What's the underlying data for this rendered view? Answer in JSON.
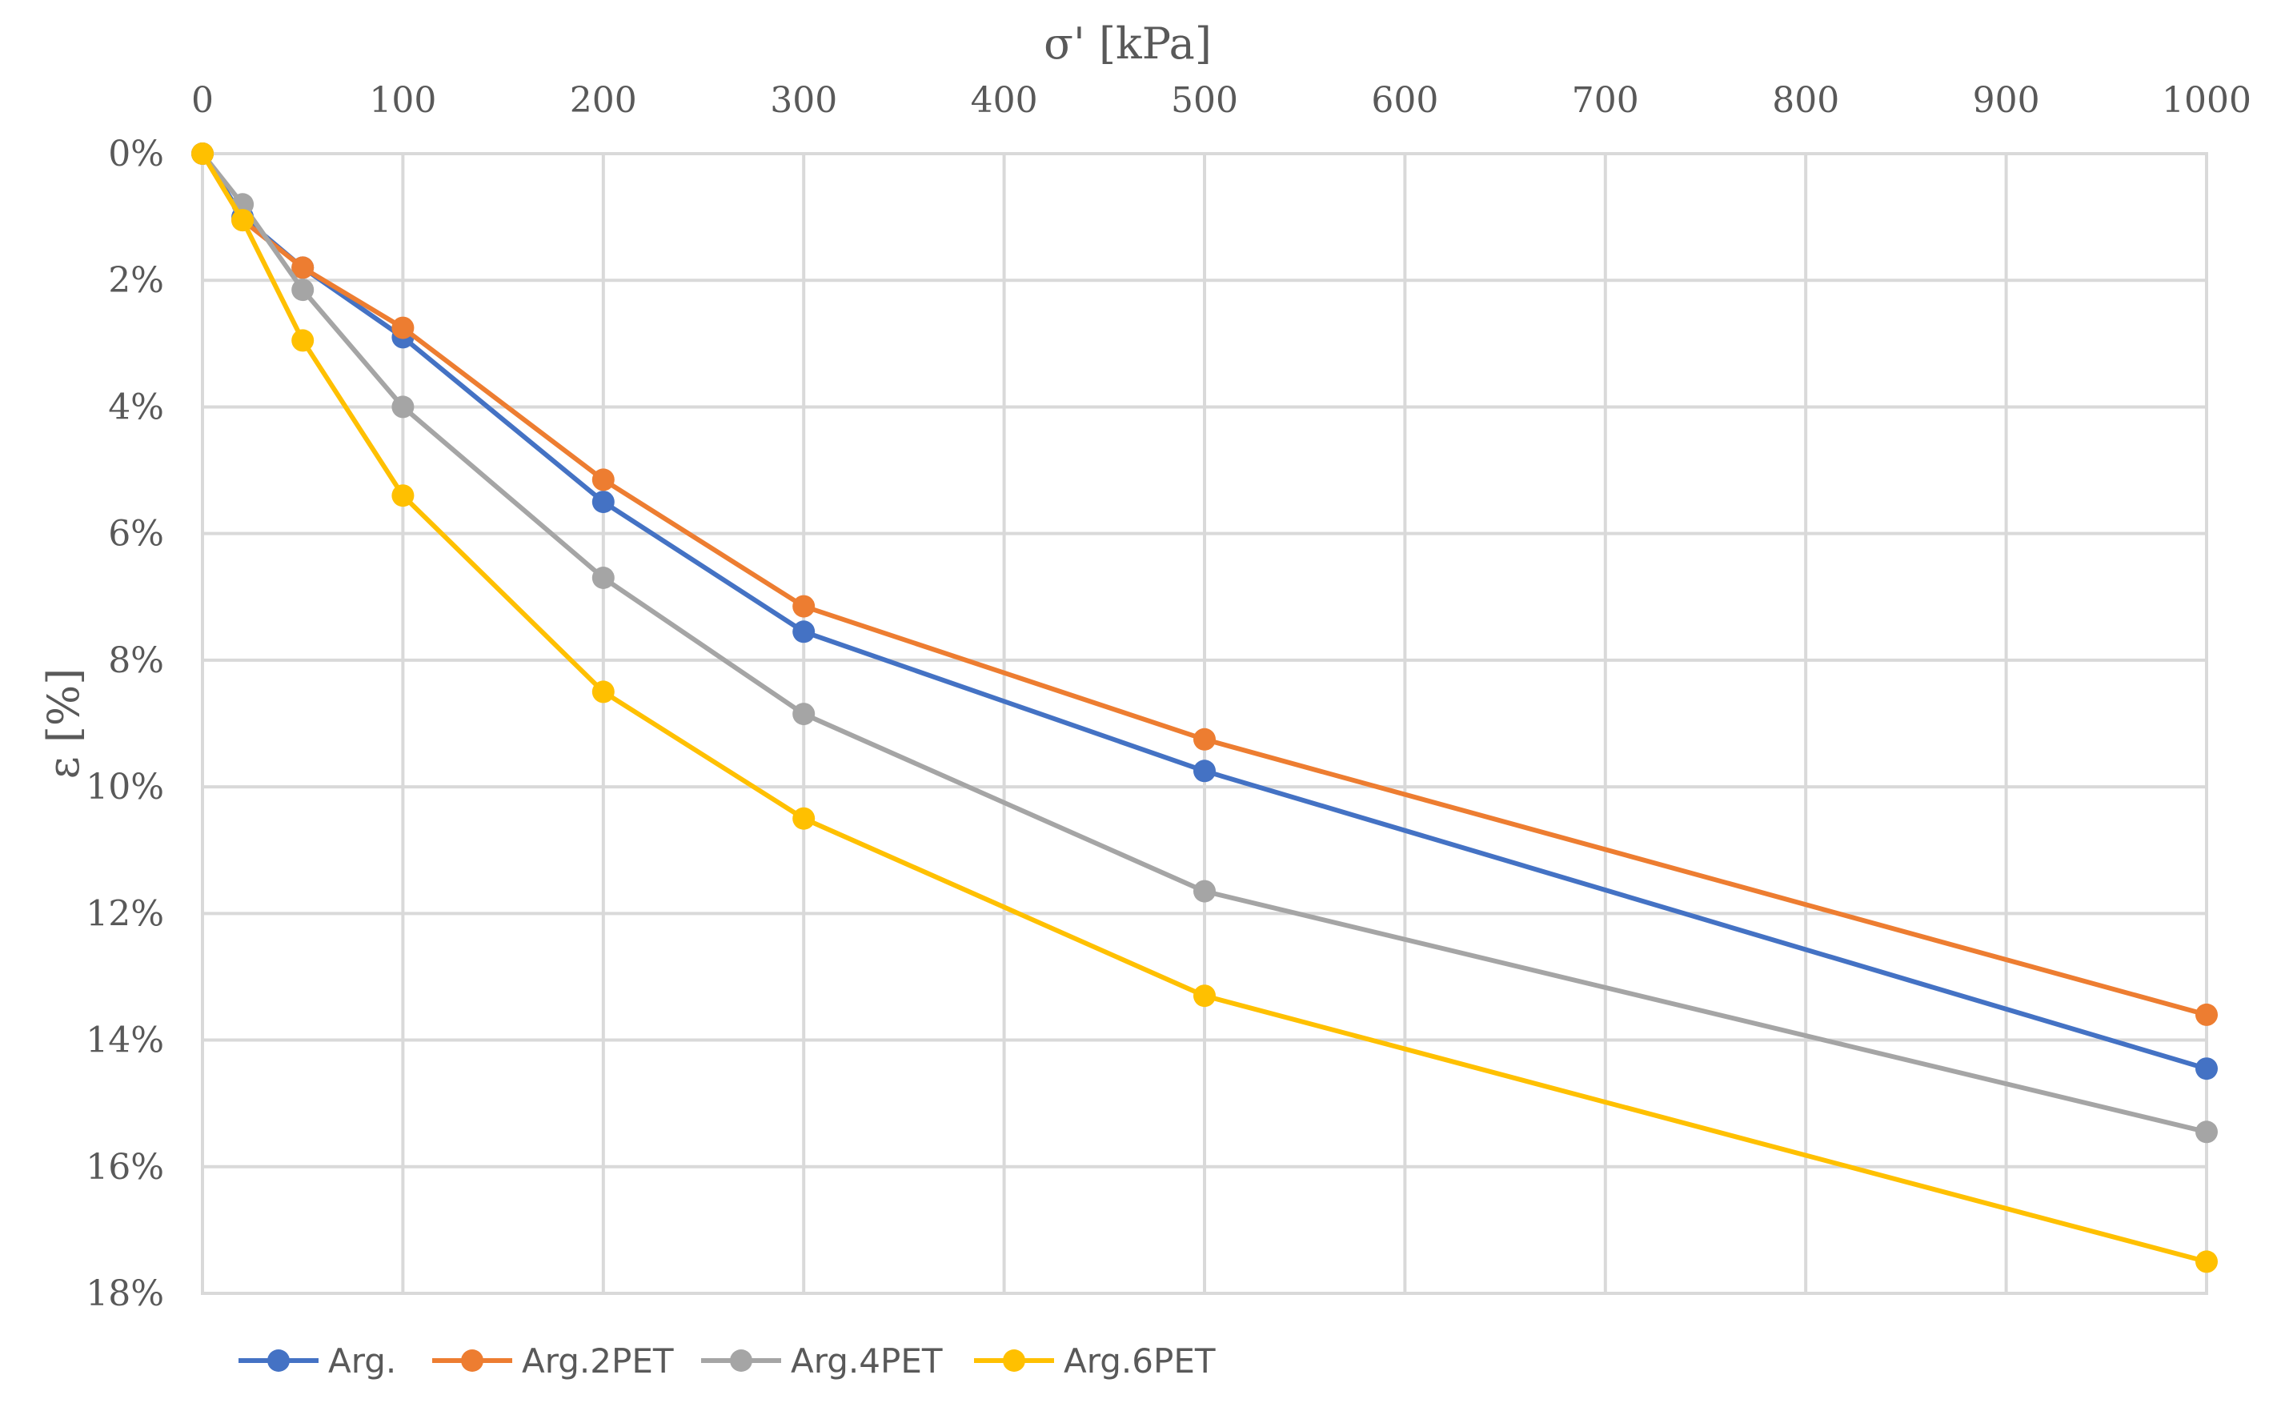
{
  "chart_data": {
    "type": "line",
    "title": "",
    "xlabel": "σ' [kPa]",
    "ylabel": "ε [%]",
    "x_axis_position": "top",
    "y_axis_inverted": true,
    "x_category_positions": [
      0,
      20,
      50,
      100,
      200,
      300,
      500,
      1000
    ],
    "x_tick_labels": [
      "0",
      "100",
      "200",
      "300",
      "400",
      "500",
      "600",
      "700",
      "800",
      "900",
      "1000"
    ],
    "y_tick_labels": [
      "0%",
      "2%",
      "4%",
      "6%",
      "8%",
      "10%",
      "12%",
      "14%",
      "16%",
      "18%"
    ],
    "ylim": [
      0,
      18
    ],
    "grid": true,
    "legend_position": "bottom-left",
    "series": [
      {
        "name": "Arg.",
        "color": "#4472c4",
        "x": [
          0,
          20,
          50,
          100,
          200,
          300,
          500,
          1000
        ],
        "values": [
          0,
          1.0,
          1.8,
          2.9,
          5.5,
          7.55,
          9.75,
          14.45
        ]
      },
      {
        "name": "Arg.2PET",
        "color": "#ed7d31",
        "x": [
          0,
          20,
          50,
          100,
          200,
          300,
          500,
          1000
        ],
        "values": [
          0,
          1.05,
          1.8,
          2.75,
          5.15,
          7.15,
          9.25,
          13.6
        ]
      },
      {
        "name": "Arg.4PET",
        "color": "#a5a5a5",
        "x": [
          0,
          20,
          50,
          100,
          200,
          300,
          500,
          1000
        ],
        "values": [
          0,
          0.8,
          2.15,
          4.0,
          6.7,
          8.85,
          11.65,
          15.45
        ]
      },
      {
        "name": "Arg.6PET",
        "color": "#ffc000",
        "x": [
          0,
          20,
          50,
          100,
          200,
          300,
          500,
          1000
        ],
        "values": [
          0,
          1.05,
          2.95,
          5.4,
          8.5,
          10.5,
          13.3,
          17.5
        ]
      }
    ]
  }
}
